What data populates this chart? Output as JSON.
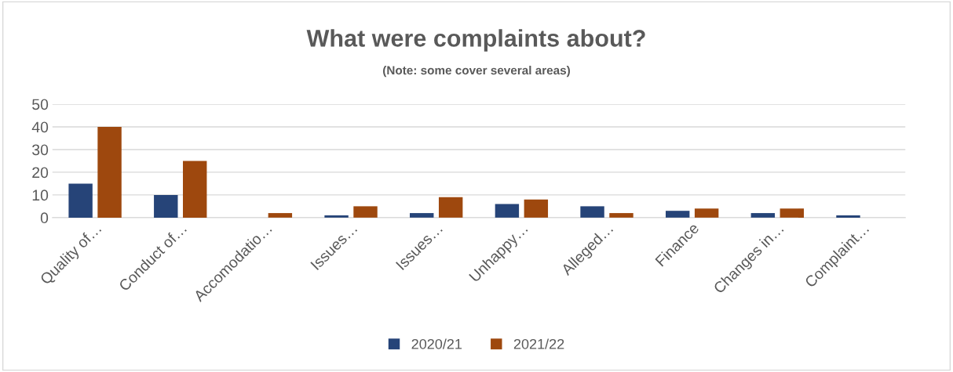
{
  "chart_data": {
    "type": "bar",
    "title": "What were complaints about?",
    "subtitle": "(Note: some cover several areas)",
    "categories": [
      "Quality of…",
      "Conduct of…",
      "Accomodatio…",
      "Issues…",
      "Issues…",
      "Unhappy…",
      "Alleged…",
      "Finance",
      "Changes in…",
      "Complaint…"
    ],
    "series": [
      {
        "name": "2020/21",
        "color": "#264478",
        "values": [
          15,
          10,
          0,
          1,
          2,
          6,
          5,
          3,
          2,
          1
        ]
      },
      {
        "name": "2021/22",
        "color": "#9e480e",
        "values": [
          40,
          25,
          2,
          5,
          9,
          8,
          2,
          4,
          4,
          0
        ]
      }
    ],
    "ylim": [
      0,
      50
    ],
    "yticks": [
      0,
      10,
      20,
      30,
      40,
      50
    ],
    "grid": "y",
    "legend": "bottom"
  }
}
